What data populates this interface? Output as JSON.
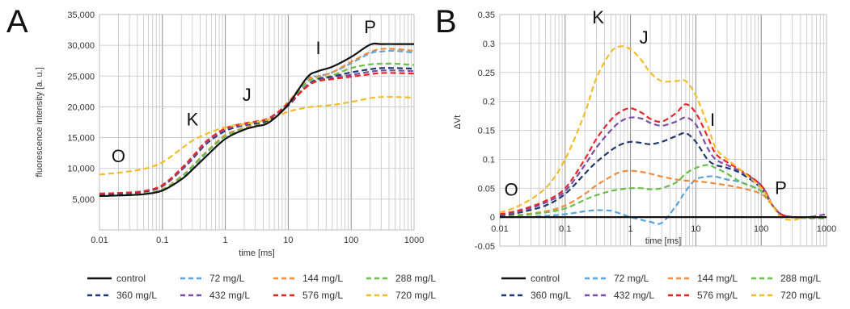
{
  "figure": {
    "panels": [
      "A",
      "B"
    ]
  },
  "chart_data": [
    {
      "panel": "A",
      "type": "line",
      "xscale": "log",
      "xlim": [
        0.01,
        1000
      ],
      "ylim": [
        0,
        35000
      ],
      "xlabel": "time [ms]",
      "ylabel": "fluorescence intensity [a. u.]",
      "x_tick_labels": [
        "0.01",
        "0.1",
        "1",
        "10",
        "100",
        "1000"
      ],
      "y_tick_labels": [
        "5,000",
        "10,000",
        "15,000",
        "20,000",
        "25,000",
        "30,000",
        "35,000"
      ],
      "y_ticks": [
        5000,
        10000,
        15000,
        20000,
        25000,
        30000,
        35000
      ],
      "grid": true,
      "annotations": [
        {
          "text": "O",
          "x": 0.02,
          "y": 11000
        },
        {
          "text": "K",
          "x": 0.3,
          "y": 17000
        },
        {
          "text": "J",
          "x": 2.2,
          "y": 21000
        },
        {
          "text": "I",
          "x": 30,
          "y": 28600
        },
        {
          "text": "P",
          "x": 200,
          "y": 32000
        }
      ],
      "x": [
        0.01,
        0.02,
        0.05,
        0.1,
        0.2,
        0.3,
        0.5,
        1,
        2,
        3,
        5,
        10,
        20,
        30,
        50,
        100,
        200,
        300,
        500,
        1000
      ],
      "series": [
        {
          "name": "control",
          "values": [
            5500,
            5600,
            5800,
            6400,
            8200,
            9800,
            12000,
            14800,
            16300,
            16800,
            17500,
            20400,
            24800,
            25800,
            26500,
            28100,
            30100,
            30200,
            30200,
            30200
          ]
        },
        {
          "name": "72 mg/L",
          "values": [
            5600,
            5700,
            5900,
            6500,
            8500,
            10200,
            12500,
            15300,
            16500,
            17000,
            17700,
            20700,
            24600,
            25000,
            25600,
            27100,
            28700,
            29000,
            29100,
            28800
          ]
        },
        {
          "name": "144 mg/L",
          "values": [
            5600,
            5700,
            5900,
            6600,
            8700,
            10400,
            12700,
            15400,
            16600,
            17100,
            17900,
            20800,
            24300,
            24900,
            25600,
            27300,
            28900,
            29400,
            29400,
            29100
          ]
        },
        {
          "name": "288 mg/L",
          "values": [
            5600,
            5700,
            5900,
            6500,
            8600,
            10300,
            12600,
            15200,
            16400,
            16900,
            17700,
            20500,
            24000,
            24600,
            25100,
            26300,
            26900,
            27000,
            27000,
            26800
          ]
        },
        {
          "name": "360 mg/L",
          "values": [
            5800,
            5900,
            6200,
            7100,
            9700,
            11500,
            14000,
            16100,
            17000,
            17300,
            17900,
            20200,
            23500,
            24500,
            24900,
            25600,
            26100,
            26300,
            26300,
            26200
          ]
        },
        {
          "name": "432 mg/L",
          "values": [
            5900,
            6000,
            6300,
            7200,
            9800,
            11700,
            14200,
            16300,
            17100,
            17500,
            18100,
            20400,
            23400,
            24300,
            24700,
            25200,
            25700,
            25900,
            25900,
            25800
          ]
        },
        {
          "name": "576 mg/L",
          "values": [
            5900,
            6000,
            6300,
            7300,
            10000,
            11900,
            14400,
            16500,
            17300,
            17600,
            18200,
            20500,
            23300,
            24200,
            24500,
            24900,
            25300,
            25500,
            25500,
            25400
          ]
        },
        {
          "name": "720 mg/L",
          "values": [
            9000,
            9300,
            9900,
            11000,
            13200,
            14500,
            15600,
            16700,
            17200,
            17500,
            18000,
            19200,
            19900,
            20100,
            20300,
            20800,
            21400,
            21600,
            21600,
            21500
          ]
        }
      ]
    },
    {
      "panel": "B",
      "type": "line",
      "xscale": "log",
      "xlim": [
        0.01,
        1000
      ],
      "ylim": [
        -0.05,
        0.35
      ],
      "xlabel": "time [ms]",
      "ylabel": "ΔVt",
      "x_tick_labels": [
        "0.01",
        "0.1",
        "1",
        "10",
        "100",
        "1000"
      ],
      "y_tick_labels": [
        "-0.05",
        "0",
        "0.05",
        "0.1",
        "0.15",
        "0.2",
        "0.25",
        "0.3",
        "0.35"
      ],
      "y_ticks": [
        -0.05,
        0,
        0.05,
        0.1,
        0.15,
        0.2,
        0.25,
        0.3,
        0.35
      ],
      "grid": true,
      "annotations": [
        {
          "text": "O",
          "x": 0.015,
          "y": 0.037
        },
        {
          "text": "K",
          "x": 0.32,
          "y": 0.335
        },
        {
          "text": "J",
          "x": 1.6,
          "y": 0.3
        },
        {
          "text": "I",
          "x": 18,
          "y": 0.158
        },
        {
          "text": "P",
          "x": 200,
          "y": 0.04
        }
      ],
      "x": [
        0.01,
        0.02,
        0.05,
        0.1,
        0.2,
        0.3,
        0.5,
        0.7,
        1,
        1.5,
        2,
        3,
        5,
        7,
        10,
        15,
        20,
        30,
        50,
        100,
        150,
        200,
        300,
        500,
        1000
      ],
      "series": [
        {
          "name": "control",
          "values": [
            0,
            0,
            0,
            0,
            0,
            0,
            0,
            0,
            0,
            0,
            0,
            0,
            0,
            0,
            0,
            0,
            0,
            0,
            0,
            0,
            0,
            0,
            0,
            0,
            0
          ]
        },
        {
          "name": "72 mg/L",
          "values": [
            0,
            0,
            0.002,
            0.005,
            0.01,
            0.012,
            0.011,
            0.006,
            0,
            -0.005,
            -0.008,
            -0.01,
            0.02,
            0.045,
            0.065,
            0.07,
            0.07,
            0.065,
            0.06,
            0.045,
            0.02,
            0.005,
            0,
            0,
            0
          ]
        },
        {
          "name": "144 mg/L",
          "values": [
            0.002,
            0.004,
            0.01,
            0.02,
            0.04,
            0.055,
            0.07,
            0.078,
            0.08,
            0.078,
            0.075,
            0.07,
            0.065,
            0.063,
            0.062,
            0.06,
            0.058,
            0.055,
            0.05,
            0.04,
            0.02,
            0.005,
            0,
            0,
            0
          ]
        },
        {
          "name": "288 mg/L",
          "values": [
            0.001,
            0.003,
            0.008,
            0.015,
            0.03,
            0.038,
            0.045,
            0.048,
            0.05,
            0.05,
            0.048,
            0.05,
            0.06,
            0.075,
            0.085,
            0.09,
            0.085,
            0.075,
            0.06,
            0.045,
            0.02,
            0.005,
            0,
            -0.002,
            -0.002
          ]
        },
        {
          "name": "360 mg/L",
          "values": [
            0.003,
            0.008,
            0.02,
            0.04,
            0.075,
            0.095,
            0.115,
            0.125,
            0.13,
            0.128,
            0.126,
            0.13,
            0.14,
            0.145,
            0.13,
            0.1,
            0.09,
            0.085,
            0.075,
            0.05,
            0.02,
            0.005,
            0,
            0,
            0
          ]
        },
        {
          "name": "432 mg/L",
          "values": [
            0.004,
            0.01,
            0.025,
            0.045,
            0.09,
            0.12,
            0.15,
            0.165,
            0.172,
            0.17,
            0.163,
            0.158,
            0.165,
            0.172,
            0.16,
            0.12,
            0.1,
            0.09,
            0.078,
            0.055,
            0.02,
            0.005,
            0,
            0,
            0.005
          ]
        },
        {
          "name": "576 mg/L",
          "values": [
            0.005,
            0.012,
            0.028,
            0.05,
            0.1,
            0.135,
            0.168,
            0.182,
            0.188,
            0.18,
            0.17,
            0.165,
            0.18,
            0.195,
            0.18,
            0.14,
            0.11,
            0.095,
            0.08,
            0.055,
            0.02,
            0.005,
            0,
            0,
            0
          ]
        },
        {
          "name": "720 mg/L",
          "values": [
            0.008,
            0.02,
            0.05,
            0.1,
            0.18,
            0.24,
            0.285,
            0.295,
            0.29,
            0.27,
            0.25,
            0.235,
            0.235,
            0.235,
            0.21,
            0.16,
            0.12,
            0.1,
            0.08,
            0.05,
            0.02,
            0,
            -0.005,
            0,
            0
          ]
        }
      ]
    }
  ],
  "legend": {
    "items": [
      {
        "label": "control",
        "color": "#111111",
        "dash": false
      },
      {
        "label": "72 mg/L",
        "color": "#5ba3dc",
        "dash": true
      },
      {
        "label": "144 mg/L",
        "color": "#ef8c3e",
        "dash": true
      },
      {
        "label": "288 mg/L",
        "color": "#6abf4b",
        "dash": true
      },
      {
        "label": "360 mg/L",
        "color": "#1f3a6e",
        "dash": true
      },
      {
        "label": "432 mg/L",
        "color": "#7b4fa8",
        "dash": true
      },
      {
        "label": "576 mg/L",
        "color": "#e8262a",
        "dash": true
      },
      {
        "label": "720 mg/L",
        "color": "#f5bc2a",
        "dash": true
      }
    ]
  }
}
